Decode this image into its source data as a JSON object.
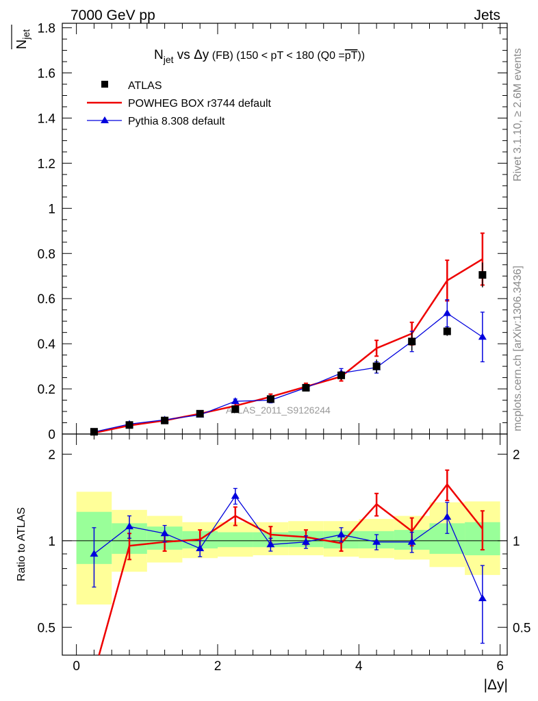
{
  "header": {
    "left": "7000 GeV pp",
    "right": "Jets"
  },
  "side_labels": {
    "rivet": "Rivet 3.1.10, ≥ 2.6M events",
    "mcplots": "mcplots.cern.ch [arXiv:1306.3436]"
  },
  "watermark": "ATLAS_2011_S9126244",
  "colors": {
    "atlas": "#000000",
    "powheg": "#ee0000",
    "pythia": "#0000dd",
    "band_outer": "#ffff99",
    "band_inner": "#99ff99"
  },
  "chart_data": [
    {
      "type": "line",
      "panel": "main",
      "title_parts": {
        "n": "N",
        "jet_sub": "jet",
        "vs": " vs ",
        "delta": "Δ",
        "y": "y",
        "fb": " (FB) ",
        "range": "(150 < pT < 180 (Q0 =",
        "pt_bar": "pT",
        "close": "))"
      },
      "ylabel": {
        "n": "N",
        "sub": "jet"
      },
      "xlim": [
        -0.2,
        6.1
      ],
      "ylim": [
        0,
        1.82
      ],
      "yticks": [
        "0",
        "0.2",
        "0.4",
        "0.6",
        "0.8",
        "1",
        "1.2",
        "1.4",
        "1.6",
        "1.8"
      ],
      "ytick_values": [
        0,
        0.2,
        0.4,
        0.6,
        0.8,
        1,
        1.2,
        1.4,
        1.6,
        1.8
      ],
      "x": [
        0.25,
        0.75,
        1.25,
        1.75,
        2.25,
        2.75,
        3.25,
        3.75,
        4.25,
        4.75,
        5.25,
        5.75
      ],
      "series": [
        {
          "name": "ATLAS",
          "marker": "square",
          "values": [
            0.01,
            0.04,
            0.06,
            0.09,
            0.11,
            0.155,
            0.205,
            0.26,
            0.3,
            0.41,
            0.455,
            0.705
          ],
          "err": [
            0.003,
            0.006,
            0.007,
            0.01,
            0.012,
            0.012,
            0.015,
            0.02,
            0.03,
            0.04,
            0.02,
            0.055
          ]
        },
        {
          "name": "POWHEG BOX r3744 default",
          "marker": "line",
          "values": [
            0.005,
            0.038,
            0.06,
            0.09,
            0.125,
            0.165,
            0.21,
            0.255,
            0.38,
            0.445,
            0.68,
            0.775
          ],
          "err": [
            0.002,
            0.005,
            0.006,
            0.007,
            0.01,
            0.012,
            0.015,
            0.02,
            0.035,
            0.05,
            0.09,
            0.115
          ]
        },
        {
          "name": "Pythia 8.308 default",
          "marker": "triangle",
          "values": [
            0.009,
            0.044,
            0.063,
            0.085,
            0.145,
            0.15,
            0.205,
            0.27,
            0.295,
            0.41,
            0.535,
            0.43
          ],
          "err": [
            0.002,
            0.004,
            0.005,
            0.007,
            0.01,
            0.012,
            0.012,
            0.02,
            0.025,
            0.045,
            0.06,
            0.11
          ]
        }
      ]
    },
    {
      "type": "line",
      "panel": "ratio",
      "ylabel": "Ratio to ATLAS",
      "xlabel": "|Δy|",
      "xlim": [
        -0.2,
        6.1
      ],
      "ylim": [
        0.4,
        2.35
      ],
      "yticks": [
        "0.5",
        "1",
        "2"
      ],
      "ytick_values": [
        0.5,
        1,
        2
      ],
      "xticks": [
        "0",
        "2",
        "4",
        "6"
      ],
      "xtick_values": [
        0,
        2,
        4,
        6
      ],
      "bands": {
        "edges": [
          0,
          0.5,
          1,
          1.5,
          2,
          2.5,
          3,
          3.5,
          4,
          4.5,
          5,
          5.5,
          6
        ],
        "outer": [
          [
            0.6,
            1.48
          ],
          [
            0.78,
            1.28
          ],
          [
            0.84,
            1.22
          ],
          [
            0.87,
            1.16
          ],
          [
            0.88,
            1.16
          ],
          [
            0.89,
            1.16
          ],
          [
            0.89,
            1.17
          ],
          [
            0.88,
            1.17
          ],
          [
            0.87,
            1.19
          ],
          [
            0.86,
            1.22
          ],
          [
            0.81,
            1.36
          ],
          [
            0.76,
            1.37
          ]
        ],
        "inner": [
          [
            0.83,
            1.26
          ],
          [
            0.9,
            1.15
          ],
          [
            0.93,
            1.12
          ],
          [
            0.94,
            1.08
          ],
          [
            0.95,
            1.07
          ],
          [
            0.95,
            1.07
          ],
          [
            0.95,
            1.08
          ],
          [
            0.94,
            1.08
          ],
          [
            0.94,
            1.08
          ],
          [
            0.93,
            1.09
          ],
          [
            0.9,
            1.15
          ],
          [
            0.89,
            1.16
          ]
        ]
      },
      "x": [
        0.25,
        0.75,
        1.25,
        1.75,
        2.25,
        2.75,
        3.25,
        3.75,
        4.25,
        4.75,
        5.25,
        5.75
      ],
      "series": [
        {
          "name": "POWHEG BOX r3744 default",
          "values": [
            0.35,
            0.96,
            0.99,
            1.01,
            1.22,
            1.05,
            1.03,
            0.98,
            1.34,
            1.08,
            1.57,
            1.1
          ],
          "err": [
            0,
            0.1,
            0.07,
            0.08,
            0.09,
            0.07,
            0.06,
            0.06,
            0.12,
            0.12,
            0.19,
            0.17
          ]
        },
        {
          "name": "Pythia 8.308 default",
          "values": [
            0.9,
            1.12,
            1.06,
            0.94,
            1.43,
            0.97,
            0.99,
            1.05,
            0.99,
            0.99,
            1.21,
            0.63
          ],
          "err": [
            0.21,
            0.1,
            0.07,
            0.06,
            0.09,
            0.05,
            0.05,
            0.06,
            0.06,
            0.08,
            0.15,
            0.19
          ]
        }
      ]
    }
  ]
}
